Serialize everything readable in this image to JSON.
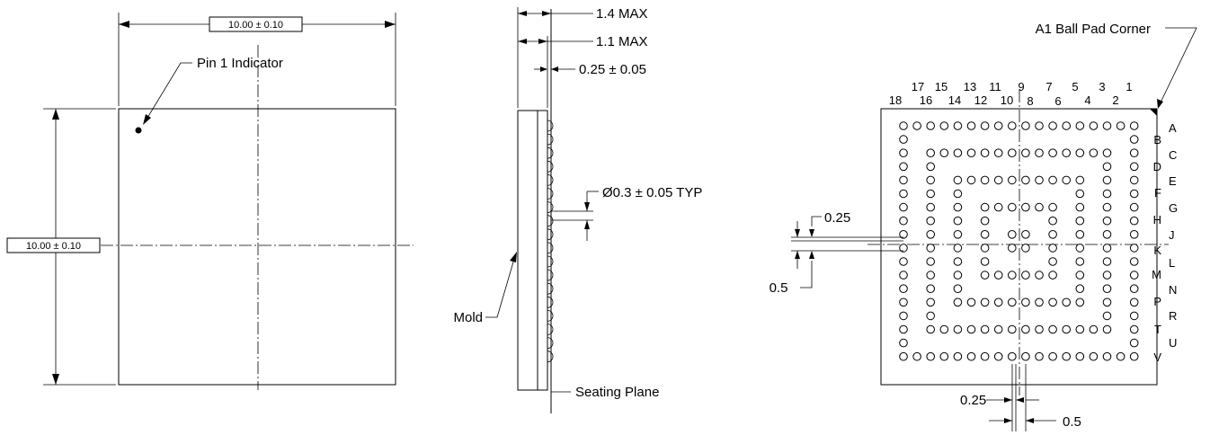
{
  "top_view": {
    "width_dim": "10.00 ± 0.10",
    "height_dim": "10.00 ± 0.10",
    "pin1_label": "Pin 1 Indicator"
  },
  "side_view": {
    "max_height": "1.4 MAX",
    "body_height": "1.1 MAX",
    "standoff": "0.25 ± 0.05",
    "ball_diameter": "Ø0.3 ± 0.05 TYP",
    "mold_label": "Mold",
    "seating_plane_label": "Seating Plane"
  },
  "bottom_view": {
    "corner_label": "A1 Ball Pad Corner",
    "columns_odd": [
      "17",
      "15",
      "13",
      "11",
      "9",
      "7",
      "5",
      "3",
      "1"
    ],
    "columns_even": [
      "18",
      "16",
      "14",
      "12",
      "10",
      "8",
      "6",
      "4",
      "2"
    ],
    "rows_odd": [
      "A",
      "C",
      "E",
      "G",
      "J",
      "L",
      "N",
      "R",
      "U"
    ],
    "rows_even": [
      "B",
      "D",
      "F",
      "H",
      "K",
      "M",
      "P",
      "T",
      "V"
    ],
    "ball_dim_v": "0.25",
    "pitch_v": "0.5",
    "ball_dim_h": "0.25",
    "pitch_h": "0.5"
  }
}
